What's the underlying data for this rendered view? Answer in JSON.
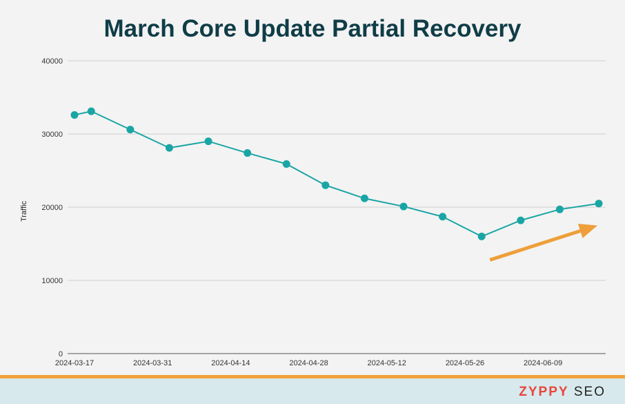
{
  "chart_data": {
    "type": "line",
    "title": "March Core Update Partial Recovery",
    "xlabel": "",
    "ylabel": "Traffic",
    "ylim": [
      0,
      40000
    ],
    "yticks": [
      "0",
      "10000",
      "20000",
      "30000",
      "40000"
    ],
    "xtick_labels": [
      "2024-03-17",
      "2024-03-31",
      "2024-04-14",
      "2024-04-28",
      "2024-05-12",
      "2024-05-26",
      "2024-06-09"
    ],
    "x": [
      "2024-03-17",
      "2024-03-20",
      "2024-03-27",
      "2024-04-03",
      "2024-04-10",
      "2024-04-17",
      "2024-04-24",
      "2024-05-01",
      "2024-05-08",
      "2024-05-15",
      "2024-05-22",
      "2024-05-29",
      "2024-06-05",
      "2024-06-12",
      "2024-06-19"
    ],
    "series": [
      {
        "values": [
          32600,
          33100,
          30600,
          28100,
          29000,
          27400,
          25900,
          23000,
          21200,
          20100,
          18700,
          16000,
          18200,
          19700,
          20500
        ],
        "color": "#1aa5a5"
      }
    ],
    "annotation": {
      "type": "arrow",
      "color": "#ee9f3a",
      "from": [
        "2024-05-29",
        12800
      ],
      "to": [
        "2024-06-19",
        17500
      ]
    },
    "grid": true
  },
  "brand": {
    "part1": "ZYPPY",
    "part2": " SEO"
  }
}
